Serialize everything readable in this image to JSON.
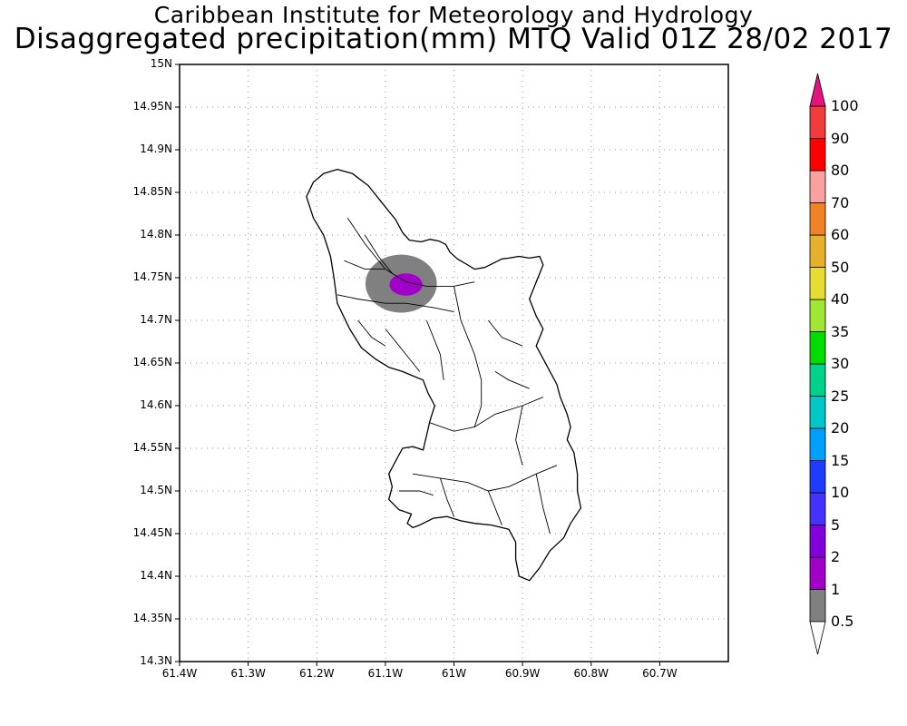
{
  "header": {
    "line1": "Caribbean Institute for Meteorology and Hydrology",
    "line2": "Disaggregated precipitation(mm) MTQ Valid 01Z 28/02 2017"
  },
  "axes": {
    "y_ticks": [
      "15N",
      "14.95N",
      "14.9N",
      "14.85N",
      "14.8N",
      "14.75N",
      "14.7N",
      "14.65N",
      "14.6N",
      "14.55N",
      "14.5N",
      "14.45N",
      "14.4N",
      "14.35N",
      "14.3N"
    ],
    "x_ticks": [
      "61.4W",
      "61.3W",
      "61.2W",
      "61.1W",
      "61W",
      "60.9W",
      "60.8W",
      "60.7W"
    ],
    "lon_range": [
      -61.4,
      -60.6
    ],
    "lat_range": [
      14.3,
      15.0
    ],
    "grid": "dotted"
  },
  "colorbar": {
    "labels": [
      "0.5",
      "1",
      "2",
      "5",
      "10",
      "15",
      "20",
      "25",
      "30",
      "35",
      "40",
      "50",
      "60",
      "70",
      "80",
      "90",
      "100"
    ],
    "colors": [
      "#808080",
      "#a000c8",
      "#8200dc",
      "#4632ff",
      "#1e3cff",
      "#00a0ff",
      "#00c8c8",
      "#00d28c",
      "#00dc00",
      "#a0e632",
      "#e6dc32",
      "#e6af2d",
      "#f08228",
      "#faa0a0",
      "#ff0000",
      "#f03c3c",
      "#e6127e"
    ]
  },
  "precip_areas": [
    {
      "label": "0.5-1 mm",
      "color": "#808080",
      "center": [
        -61.077,
        14.743
      ],
      "radius_deg": [
        0.052,
        0.034
      ]
    },
    {
      "label": "1-2 mm",
      "color": "#a000c8",
      "center": [
        -61.07,
        14.742
      ],
      "radius_deg": [
        0.024,
        0.013
      ]
    }
  ],
  "island": {
    "name": "Martinique",
    "outline_lonlat": [
      [
        -61.215,
        14.845
      ],
      [
        -61.205,
        14.862
      ],
      [
        -61.19,
        14.872
      ],
      [
        -61.17,
        14.877
      ],
      [
        -61.148,
        14.872
      ],
      [
        -61.125,
        14.858
      ],
      [
        -61.105,
        14.838
      ],
      [
        -61.085,
        14.818
      ],
      [
        -61.075,
        14.803
      ],
      [
        -61.065,
        14.794
      ],
      [
        -61.048,
        14.792
      ],
      [
        -61.035,
        14.795
      ],
      [
        -61.022,
        14.793
      ],
      [
        -61.012,
        14.789
      ],
      [
        -61.006,
        14.78
      ],
      [
        -60.995,
        14.772
      ],
      [
        -60.982,
        14.766
      ],
      [
        -60.97,
        14.76
      ],
      [
        -60.955,
        14.762
      ],
      [
        -60.94,
        14.768
      ],
      [
        -60.93,
        14.772
      ],
      [
        -60.92,
        14.773
      ],
      [
        -60.905,
        14.775
      ],
      [
        -60.89,
        14.773
      ],
      [
        -60.875,
        14.775
      ],
      [
        -60.87,
        14.765
      ],
      [
        -60.88,
        14.745
      ],
      [
        -60.89,
        14.725
      ],
      [
        -60.88,
        14.705
      ],
      [
        -60.87,
        14.69
      ],
      [
        -60.88,
        14.67
      ],
      [
        -60.87,
        14.655
      ],
      [
        -60.86,
        14.64
      ],
      [
        -60.85,
        14.625
      ],
      [
        -60.845,
        14.61
      ],
      [
        -60.835,
        14.59
      ],
      [
        -60.83,
        14.575
      ],
      [
        -60.835,
        14.56
      ],
      [
        -60.825,
        14.545
      ],
      [
        -60.82,
        14.52
      ],
      [
        -60.82,
        14.5
      ],
      [
        -60.815,
        14.48
      ],
      [
        -60.83,
        14.462
      ],
      [
        -60.84,
        14.445
      ],
      [
        -60.86,
        14.43
      ],
      [
        -60.875,
        14.41
      ],
      [
        -60.89,
        14.395
      ],
      [
        -60.905,
        14.4
      ],
      [
        -60.91,
        14.42
      ],
      [
        -60.91,
        14.44
      ],
      [
        -60.92,
        14.455
      ],
      [
        -60.945,
        14.46
      ],
      [
        -60.97,
        14.462
      ],
      [
        -60.99,
        14.465
      ],
      [
        -61.01,
        14.47
      ],
      [
        -61.03,
        14.468
      ],
      [
        -61.05,
        14.46
      ],
      [
        -61.06,
        14.457
      ],
      [
        -61.068,
        14.462
      ],
      [
        -61.062,
        14.473
      ],
      [
        -61.08,
        14.478
      ],
      [
        -61.095,
        14.49
      ],
      [
        -61.09,
        14.505
      ],
      [
        -61.095,
        14.52
      ],
      [
        -61.085,
        14.535
      ],
      [
        -61.075,
        14.55
      ],
      [
        -61.06,
        14.552
      ],
      [
        -61.045,
        14.548
      ],
      [
        -61.04,
        14.565
      ],
      [
        -61.035,
        14.582
      ],
      [
        -61.028,
        14.6
      ],
      [
        -61.038,
        14.615
      ],
      [
        -61.045,
        14.63
      ],
      [
        -61.06,
        14.635
      ],
      [
        -61.075,
        14.64
      ],
      [
        -61.095,
        14.645
      ],
      [
        -61.115,
        14.655
      ],
      [
        -61.135,
        14.668
      ],
      [
        -61.152,
        14.69
      ],
      [
        -61.17,
        14.72
      ],
      [
        -61.175,
        14.75
      ],
      [
        -61.18,
        14.775
      ],
      [
        -61.19,
        14.8
      ],
      [
        -61.205,
        14.82
      ],
      [
        -61.215,
        14.845
      ]
    ],
    "internal_lines_lonlat": [
      [
        [
          -61.155,
          14.82
        ],
        [
          -61.13,
          14.79
        ],
        [
          -61.1,
          14.76
        ],
        [
          -61.07,
          14.745
        ],
        [
          -61.04,
          14.74
        ],
        [
          -61.0,
          14.74
        ],
        [
          -60.97,
          14.745
        ]
      ],
      [
        [
          -61.17,
          14.73
        ],
        [
          -61.14,
          14.725
        ],
        [
          -61.1,
          14.72
        ],
        [
          -61.07,
          14.72
        ],
        [
          -61.03,
          14.715
        ],
        [
          -61.0,
          14.71
        ]
      ],
      [
        [
          -61.13,
          14.8
        ],
        [
          -61.11,
          14.775
        ],
        [
          -61.09,
          14.755
        ]
      ],
      [
        [
          -61.0,
          14.74
        ],
        [
          -60.99,
          14.7
        ],
        [
          -60.97,
          14.66
        ],
        [
          -60.96,
          14.63
        ],
        [
          -60.96,
          14.6
        ]
      ],
      [
        [
          -61.04,
          14.7
        ],
        [
          -61.02,
          14.66
        ],
        [
          -61.015,
          14.63
        ]
      ],
      [
        [
          -61.1,
          14.69
        ],
        [
          -61.07,
          14.66
        ],
        [
          -61.05,
          14.64
        ]
      ],
      [
        [
          -61.035,
          14.58
        ],
        [
          -61.0,
          14.57
        ],
        [
          -60.97,
          14.575
        ],
        [
          -60.94,
          14.59
        ],
        [
          -60.9,
          14.6
        ],
        [
          -60.87,
          14.61
        ]
      ],
      [
        [
          -61.06,
          14.52
        ],
        [
          -61.02,
          14.515
        ],
        [
          -60.98,
          14.51
        ],
        [
          -60.95,
          14.5
        ],
        [
          -60.92,
          14.505
        ],
        [
          -60.88,
          14.52
        ],
        [
          -60.85,
          14.53
        ]
      ],
      [
        [
          -61.02,
          14.515
        ],
        [
          -61.01,
          14.49
        ],
        [
          -61.0,
          14.47
        ]
      ],
      [
        [
          -60.95,
          14.5
        ],
        [
          -60.94,
          14.48
        ],
        [
          -60.93,
          14.46
        ]
      ],
      [
        [
          -60.9,
          14.6
        ],
        [
          -60.91,
          14.56
        ],
        [
          -60.9,
          14.53
        ]
      ],
      [
        [
          -60.88,
          14.52
        ],
        [
          -60.87,
          14.48
        ],
        [
          -60.86,
          14.45
        ]
      ],
      [
        [
          -60.96,
          14.6
        ],
        [
          -60.97,
          14.575
        ]
      ],
      [
        [
          -61.08,
          14.5
        ],
        [
          -61.05,
          14.5
        ],
        [
          -61.03,
          14.495
        ]
      ],
      [
        [
          -61.16,
          14.77
        ],
        [
          -61.13,
          14.76
        ],
        [
          -61.1,
          14.76
        ]
      ],
      [
        [
          -61.14,
          14.7
        ],
        [
          -61.12,
          14.68
        ],
        [
          -61.1,
          14.67
        ]
      ],
      [
        [
          -60.95,
          14.7
        ],
        [
          -60.93,
          14.68
        ],
        [
          -60.9,
          14.67
        ]
      ],
      [
        [
          -60.94,
          14.64
        ],
        [
          -60.92,
          14.63
        ],
        [
          -60.89,
          14.62
        ]
      ]
    ]
  }
}
